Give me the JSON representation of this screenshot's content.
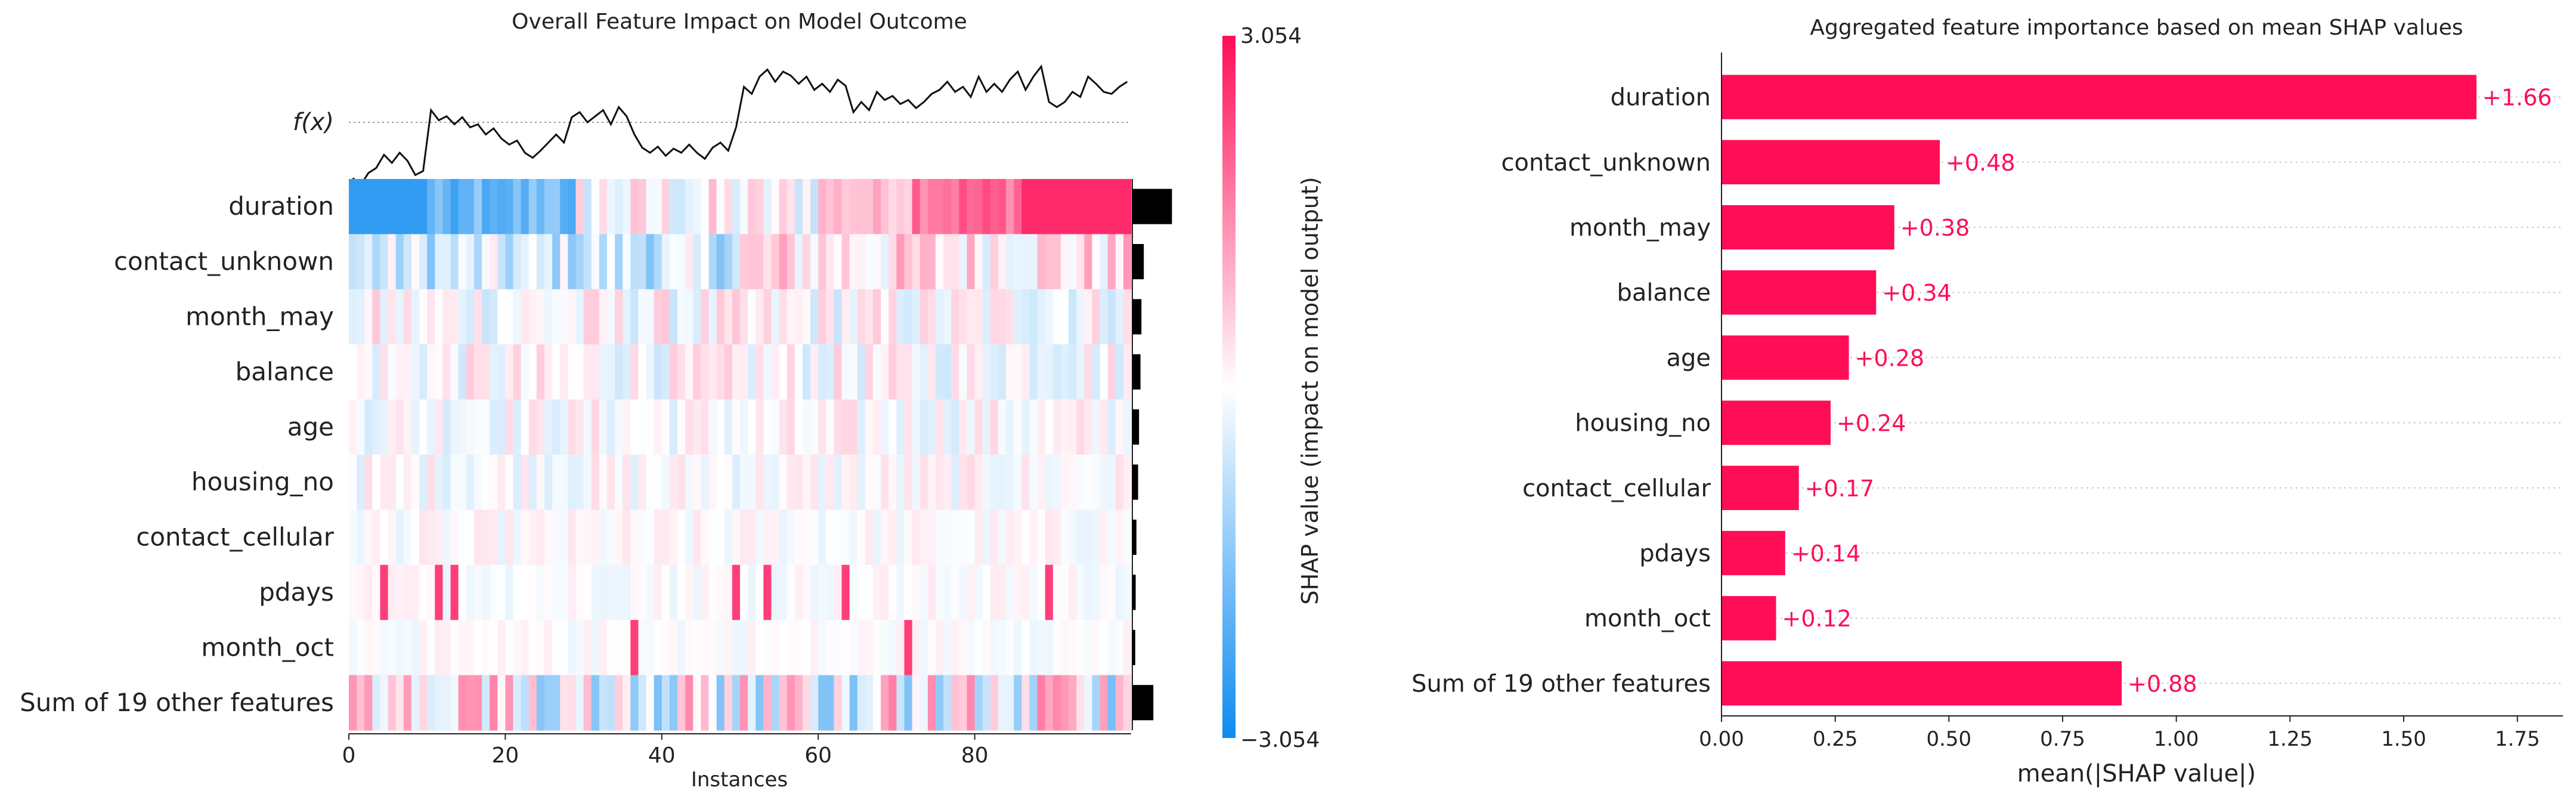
{
  "chart_data": [
    {
      "type": "heatmap",
      "title": "Overall Feature Impact on Model Outcome",
      "xlabel": "Instances",
      "xlim": [
        0,
        100
      ],
      "xticks": [
        0,
        20,
        40,
        60,
        80
      ],
      "fx_label": "f(x)",
      "features": [
        "duration",
        "contact_unknown",
        "month_may",
        "balance",
        "age",
        "housing_no",
        "contact_cellular",
        "pdays",
        "month_oct",
        "Sum of 19 other features"
      ],
      "feature_importance": [
        1.66,
        0.48,
        0.38,
        0.34,
        0.28,
        0.24,
        0.17,
        0.14,
        0.12,
        0.88
      ],
      "fx_curve": [
        -0.55,
        -0.62,
        -0.5,
        -0.45,
        -0.32,
        -0.4,
        -0.3,
        -0.38,
        -0.52,
        -0.48,
        0.12,
        0.02,
        0.06,
        -0.02,
        0.05,
        -0.05,
        -0.02,
        -0.12,
        -0.06,
        -0.16,
        -0.22,
        -0.18,
        -0.3,
        -0.35,
        -0.28,
        -0.2,
        -0.12,
        -0.2,
        0.05,
        0.1,
        0.0,
        0.06,
        0.12,
        -0.02,
        0.15,
        0.06,
        -0.12,
        -0.25,
        -0.3,
        -0.24,
        -0.33,
        -0.26,
        -0.3,
        -0.22,
        -0.3,
        -0.36,
        -0.25,
        -0.2,
        -0.28,
        -0.05,
        0.35,
        0.28,
        0.45,
        0.52,
        0.4,
        0.5,
        0.46,
        0.38,
        0.45,
        0.32,
        0.38,
        0.3,
        0.42,
        0.36,
        0.1,
        0.2,
        0.12,
        0.3,
        0.22,
        0.26,
        0.18,
        0.22,
        0.14,
        0.2,
        0.28,
        0.32,
        0.4,
        0.3,
        0.35,
        0.25,
        0.45,
        0.3,
        0.38,
        0.3,
        0.42,
        0.5,
        0.32,
        0.45,
        0.55,
        0.2,
        0.15,
        0.2,
        0.3,
        0.25,
        0.45,
        0.38,
        0.3,
        0.28,
        0.35,
        0.4
      ],
      "colorbar": {
        "label": "SHAP value (impact on model output)",
        "max_label": "3.054",
        "min_label": "−3.054",
        "low_color": "#0d8bf0",
        "mid_color": "#ffffff",
        "high_color": "#ff0d57"
      }
    },
    {
      "type": "bar",
      "orientation": "horizontal",
      "title": "Aggregated feature importance based on mean SHAP values",
      "xlabel": "mean(|SHAP value|)",
      "xlim": [
        0,
        1.85
      ],
      "xticks": [
        "0.00",
        "0.25",
        "0.50",
        "0.75",
        "1.00",
        "1.25",
        "1.50",
        "1.75"
      ],
      "categories": [
        "duration",
        "contact_unknown",
        "month_may",
        "balance",
        "age",
        "housing_no",
        "contact_cellular",
        "pdays",
        "month_oct",
        "Sum of 19 other features"
      ],
      "values": [
        1.66,
        0.48,
        0.38,
        0.34,
        0.28,
        0.24,
        0.17,
        0.14,
        0.12,
        0.88
      ],
      "value_labels": [
        "+1.66",
        "+0.48",
        "+0.38",
        "+0.34",
        "+0.28",
        "+0.24",
        "+0.17",
        "+0.14",
        "+0.12",
        "+0.88"
      ],
      "bar_color": "#ff0d57"
    }
  ]
}
